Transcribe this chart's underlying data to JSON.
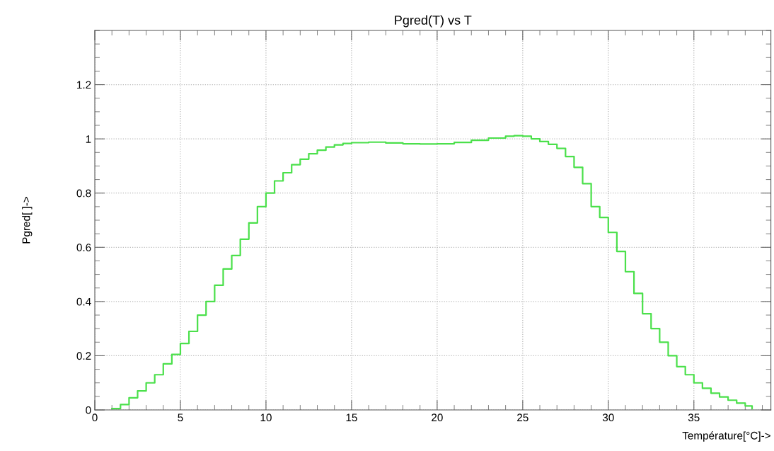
{
  "chart_data": {
    "type": "step",
    "title": "Pgred(T) vs T",
    "xlabel": "Température[°C]->",
    "ylabel": "Pgred[ ]->",
    "x": [
      1,
      1.5,
      2,
      2.5,
      3,
      3.5,
      4,
      4.5,
      5,
      5.5,
      6,
      6.5,
      7,
      7.5,
      8,
      8.5,
      9,
      9.5,
      10,
      10.5,
      11,
      11.5,
      12,
      12.5,
      13,
      13.5,
      14,
      14.5,
      15,
      16,
      17,
      18,
      19,
      20,
      21,
      22,
      23,
      24,
      24.5,
      25,
      25.5,
      26,
      26.5,
      27,
      27.5,
      28,
      28.5,
      29,
      29.5,
      30,
      30.5,
      31,
      31.5,
      32,
      32.5,
      33,
      33.5,
      34,
      34.5,
      35,
      35.5,
      36,
      36.5,
      37,
      37.5,
      38,
      38.4
    ],
    "series": [
      {
        "color": "#4be04b",
        "values": [
          0.005,
          0.02,
          0.045,
          0.07,
          0.1,
          0.13,
          0.17,
          0.205,
          0.245,
          0.29,
          0.35,
          0.4,
          0.46,
          0.52,
          0.57,
          0.63,
          0.69,
          0.75,
          0.8,
          0.845,
          0.875,
          0.905,
          0.925,
          0.945,
          0.958,
          0.97,
          0.978,
          0.983,
          0.986,
          0.988,
          0.985,
          0.982,
          0.981,
          0.982,
          0.987,
          0.995,
          1.003,
          1.01,
          1.012,
          1.01,
          1.0,
          0.99,
          0.98,
          0.965,
          0.935,
          0.895,
          0.835,
          0.75,
          0.71,
          0.655,
          0.585,
          0.51,
          0.43,
          0.355,
          0.3,
          0.25,
          0.2,
          0.16,
          0.13,
          0.1,
          0.08,
          0.062,
          0.048,
          0.036,
          0.025,
          0.015,
          0.005
        ]
      }
    ],
    "xlim": [
      0,
      39.5
    ],
    "xticks": [
      0,
      5,
      10,
      15,
      20,
      25,
      30,
      35
    ],
    "ylim": [
      0,
      1.4
    ],
    "yticks": [
      0,
      0.2,
      0.4,
      0.6,
      0.8,
      1,
      1.2
    ],
    "grid": true,
    "line_style": "solid"
  }
}
